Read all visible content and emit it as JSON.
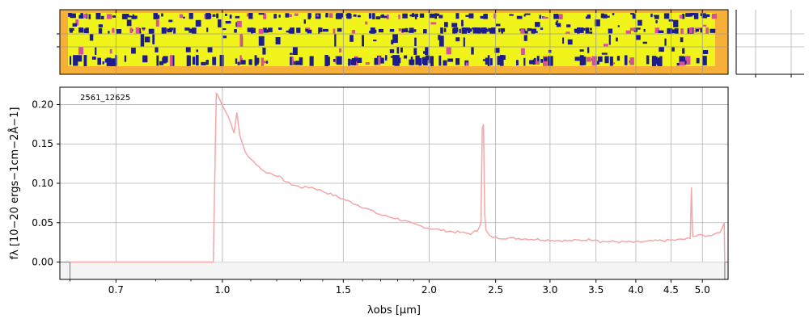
{
  "chart_data": {
    "type": "line",
    "title": "",
    "annotation": "2561_12625",
    "xlabel": "λobs [μm]",
    "ylabel": "fλ [10−20 ergs−1cm−2Å−1]",
    "xscale": "log",
    "xlim": [
      0.58,
      5.45
    ],
    "ylim": [
      -0.022,
      0.222
    ],
    "grid": true,
    "x_ticks": [
      0.7,
      1.0,
      1.5,
      2.0,
      2.5,
      3.0,
      3.5,
      4.0,
      4.5,
      5.0
    ],
    "x_tick_labels": [
      "0.7",
      "1.0",
      "1.5",
      "2.0",
      "2.5",
      "3.0",
      "3.5",
      "4.0",
      "4.5",
      "5.0"
    ],
    "y_ticks": [
      0.0,
      0.05,
      0.1,
      0.15,
      0.2
    ],
    "y_tick_labels": [
      "0.00",
      "0.05",
      "0.10",
      "0.15",
      "0.20"
    ],
    "spectrum_color": "#f4a7a7",
    "error_color": "#d0d0d0",
    "series": [
      {
        "x": [
          0.6,
          0.97,
          0.98,
          1.0,
          1.02,
          1.04,
          1.05,
          1.06,
          1.08,
          1.1,
          1.12,
          1.15,
          1.2,
          1.25,
          1.3,
          1.35,
          1.4,
          1.45,
          1.5,
          1.6,
          1.7,
          1.8,
          1.9,
          2.0,
          2.1,
          2.2,
          2.3,
          2.35,
          2.38,
          2.39,
          2.4,
          2.41,
          2.42,
          2.45,
          2.5,
          2.7,
          3.0,
          3.2,
          3.5,
          3.55,
          3.7,
          4.0,
          4.3,
          4.6,
          4.8,
          4.82,
          4.83,
          4.84,
          4.85,
          4.9,
          5.0,
          5.1,
          5.2,
          5.3,
          5.38,
          5.39
        ],
        "values": [
          0.0,
          0.0,
          0.215,
          0.2,
          0.185,
          0.165,
          0.19,
          0.16,
          0.14,
          0.13,
          0.125,
          0.115,
          0.11,
          0.1,
          0.095,
          0.095,
          0.09,
          0.085,
          0.08,
          0.07,
          0.06,
          0.055,
          0.048,
          0.043,
          0.04,
          0.038,
          0.036,
          0.04,
          0.05,
          0.17,
          0.175,
          0.06,
          0.04,
          0.033,
          0.031,
          0.03,
          0.028,
          0.027,
          0.029,
          0.026,
          0.026,
          0.025,
          0.027,
          0.028,
          0.03,
          0.095,
          0.06,
          0.034,
          0.033,
          0.033,
          0.034,
          0.033,
          0.036,
          0.038,
          0.05,
          0.0
        ]
      }
    ]
  },
  "spectrum_2d": {
    "colors": {
      "background": "#f6b03a",
      "trace": "#f0f41a",
      "negative": "#1c1c8c",
      "accent": "#d6509a"
    }
  }
}
